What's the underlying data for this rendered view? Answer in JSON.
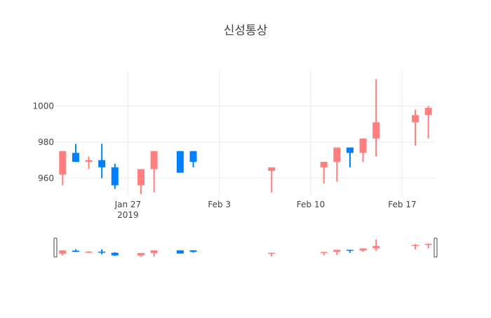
{
  "chart_data": {
    "type": "candlestick",
    "title": "신성통상",
    "x_ticks": [
      {
        "date": "2019-01-27",
        "label": "Jan 27",
        "sublabel": "2019"
      },
      {
        "date": "2019-02-03",
        "label": "Feb 3",
        "sublabel": ""
      },
      {
        "date": "2019-02-10",
        "label": "Feb 10",
        "sublabel": ""
      },
      {
        "date": "2019-02-17",
        "label": "Feb 17",
        "sublabel": ""
      }
    ],
    "y_ticks": [
      960,
      980,
      1000
    ],
    "xlim": [
      "2019-01-22",
      "2019-02-19"
    ],
    "ylim": [
      950,
      1020
    ],
    "increasing_color": "#ff7f7f",
    "decreasing_color": "#0080ff",
    "grid": true,
    "range_slider": true,
    "candles": [
      {
        "date": "2019-01-22",
        "open": 962,
        "high": 975,
        "low": 956,
        "close": 975
      },
      {
        "date": "2019-01-23",
        "open": 974,
        "high": 979,
        "low": 969,
        "close": 969
      },
      {
        "date": "2019-01-24",
        "open": 969,
        "high": 972,
        "low": 965,
        "close": 970
      },
      {
        "date": "2019-01-25",
        "open": 970,
        "high": 979,
        "low": 960,
        "close": 966
      },
      {
        "date": "2019-01-26",
        "open": 966,
        "high": 968,
        "low": 954,
        "close": 956
      },
      {
        "date": "2019-01-28",
        "open": 956,
        "high": 965,
        "low": 951,
        "close": 965
      },
      {
        "date": "2019-01-29",
        "open": 965,
        "high": 975,
        "low": 952,
        "close": 975
      },
      {
        "date": "2019-01-31",
        "open": 975,
        "high": 975,
        "low": 963,
        "close": 963
      },
      {
        "date": "2019-02-01",
        "open": 975,
        "high": 975,
        "low": 966,
        "close": 969
      },
      {
        "date": "2019-02-07",
        "open": 964,
        "high": 966,
        "low": 952,
        "close": 966
      },
      {
        "date": "2019-02-11",
        "open": 966,
        "high": 969,
        "low": 957,
        "close": 969
      },
      {
        "date": "2019-02-12",
        "open": 969,
        "high": 977,
        "low": 958,
        "close": 977
      },
      {
        "date": "2019-02-13",
        "open": 977,
        "high": 977,
        "low": 966,
        "close": 974
      },
      {
        "date": "2019-02-14",
        "open": 974,
        "high": 982,
        "low": 969,
        "close": 982
      },
      {
        "date": "2019-02-15",
        "open": 982,
        "high": 1015,
        "low": 972,
        "close": 991
      },
      {
        "date": "2019-02-18",
        "open": 991,
        "high": 998,
        "low": 978,
        "close": 995
      },
      {
        "date": "2019-02-19",
        "open": 995,
        "high": 1000,
        "low": 982,
        "close": 999
      }
    ]
  }
}
